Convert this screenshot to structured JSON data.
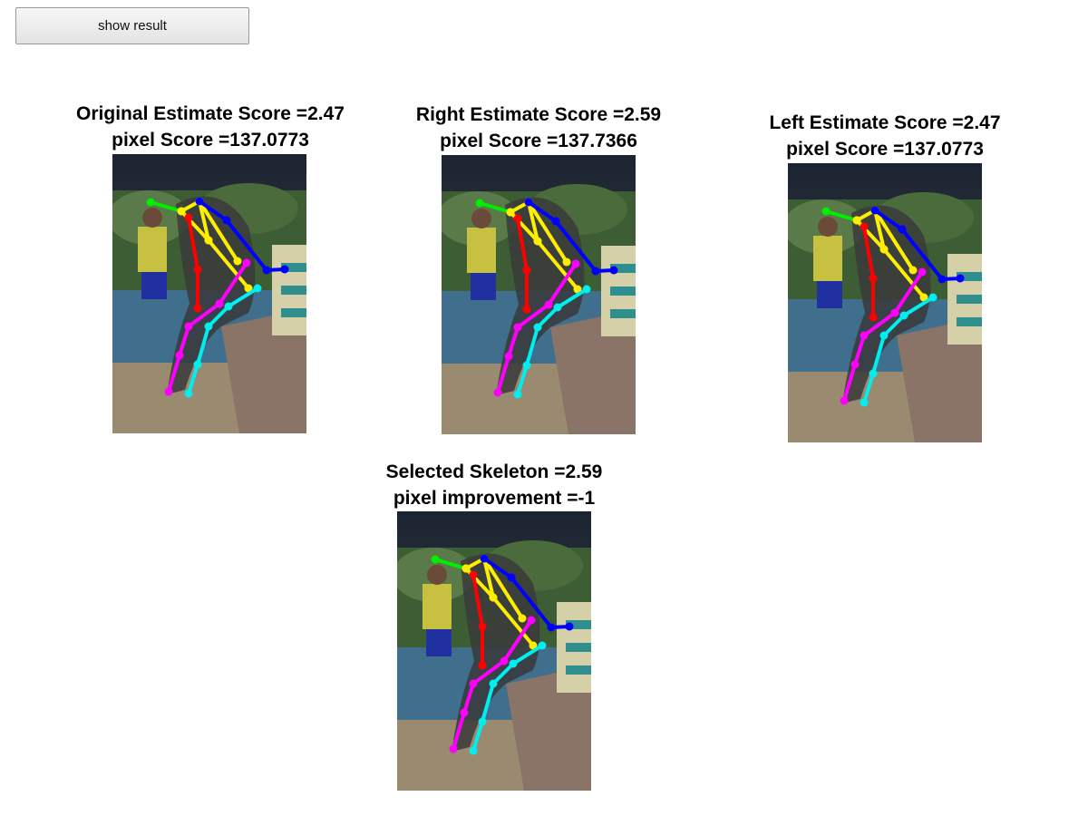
{
  "button": {
    "label": "show result"
  },
  "panels": [
    {
      "title": "Original Estimate Score =2.47",
      "subtitle": "pixel Score =137.0773",
      "variant": "original"
    },
    {
      "title": "Right Estimate Score =2.59",
      "subtitle": "pixel Score =137.7366",
      "variant": "right"
    },
    {
      "title": "Left Estimate Score =2.47",
      "subtitle": "pixel Score =137.0773",
      "variant": "left"
    },
    {
      "title": "Selected Skeleton =2.59",
      "subtitle": "pixel improvement =-1",
      "variant": "selected"
    }
  ],
  "skeleton_colors": {
    "head": "#00ee00",
    "torso": "#ffee00",
    "spine": "#ff0000",
    "right_arm": "#0000ff",
    "left_leg": "#ff00ff",
    "right_leg": "#00eeee"
  }
}
